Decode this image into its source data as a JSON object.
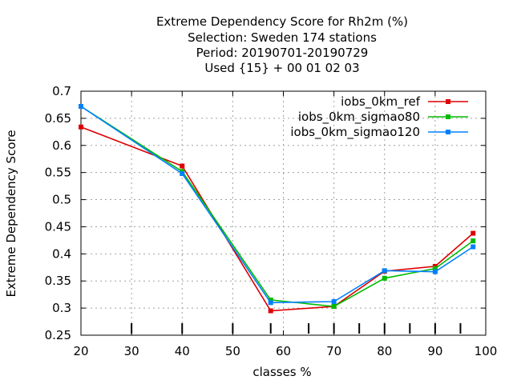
{
  "chart_data": {
    "type": "line",
    "title_lines": [
      "Extreme Dependency Score  for Rh2m (%)",
      "Selection: Sweden    174 stations",
      "Period: 20190701-20190729",
      "Used {15} + 00 01 02 03"
    ],
    "xlabel": "classes %",
    "ylabel": "Extreme Dependency Score",
    "xlim": [
      20,
      100
    ],
    "ylim": [
      0.25,
      0.7
    ],
    "xticks": [
      20,
      30,
      40,
      50,
      60,
      70,
      80,
      90,
      100
    ],
    "yticks": [
      0.25,
      0.3,
      0.35,
      0.4,
      0.45,
      0.5,
      0.55,
      0.6,
      0.65,
      0.7
    ],
    "minor_ticks_x": [
      30,
      40,
      50,
      57.5,
      65,
      70,
      75,
      80,
      85,
      90,
      95
    ],
    "grid": true,
    "legend_position": "top-right",
    "series": [
      {
        "name": "iobs_0km_ref",
        "color": "#dd0000",
        "x": [
          20,
          40,
          57.5,
          70,
          80,
          90,
          97.5
        ],
        "y": [
          0.634,
          0.562,
          0.295,
          0.303,
          0.368,
          0.377,
          0.438
        ]
      },
      {
        "name": "iobs_0km_sigmao80",
        "color": "#00bb00",
        "x": [
          20,
          40,
          57.5,
          70,
          80,
          90,
          97.5
        ],
        "y": [
          0.672,
          0.552,
          0.315,
          0.303,
          0.355,
          0.373,
          0.424
        ]
      },
      {
        "name": "iobs_0km_sigmao120",
        "color": "#0080ff",
        "x": [
          20,
          40,
          57.5,
          70,
          80,
          90,
          97.5
        ],
        "y": [
          0.672,
          0.548,
          0.31,
          0.312,
          0.369,
          0.367,
          0.413
        ]
      }
    ]
  }
}
